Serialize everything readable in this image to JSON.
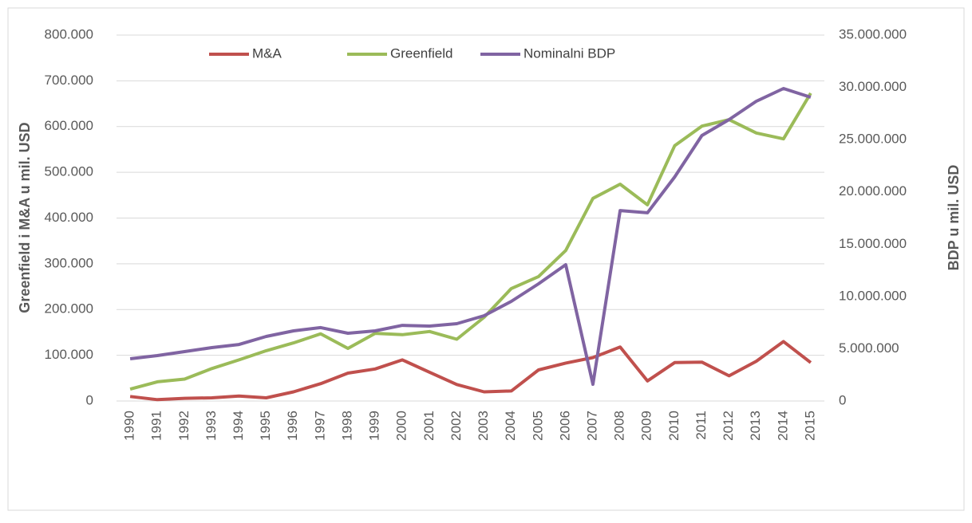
{
  "chart_data": {
    "type": "line",
    "y_label": "Greenfield i M&A u mil. USD",
    "y2_label": "BDP u mil. USD",
    "categories": [
      "1990",
      "1991",
      "1992",
      "1993",
      "1994",
      "1995",
      "1996",
      "1997",
      "1998",
      "1999",
      "2000",
      "2001",
      "2002",
      "2003",
      "2004",
      "2005",
      "2006",
      "2007",
      "2008",
      "2009",
      "2010",
      "2011",
      "2012",
      "2013",
      "2014",
      "2015"
    ],
    "series": [
      {
        "name": "M&A",
        "color": "#c0504d",
        "values": [
          10000,
          3000,
          6000,
          7000,
          11000,
          7000,
          20000,
          38000,
          61000,
          70000,
          90000,
          63000,
          36000,
          20000,
          22000,
          68000,
          83000,
          95000,
          118000,
          44000,
          84000,
          85000,
          55000,
          87000,
          130000,
          84000
        ]
      },
      {
        "name": "Greenfield",
        "color": "#9bbb59",
        "values": [
          26000,
          42000,
          48000,
          71000,
          90000,
          110000,
          127000,
          147000,
          115000,
          148000,
          145000,
          152000,
          135000,
          183000,
          246000,
          272000,
          329000,
          443000,
          474000,
          429000,
          558000,
          601000,
          615000,
          586000,
          573000,
          673000
        ]
      },
      {
        "name": "Nominalni BDP",
        "color": "#8064a2",
        "axis": "y2",
        "values": [
          4040000,
          4350000,
          4730000,
          5110000,
          5410000,
          6180000,
          6710000,
          7020000,
          6480000,
          6710000,
          7240000,
          7170000,
          7400000,
          8160000,
          9530000,
          11210000,
          13040000,
          1600000,
          18220000,
          18000000,
          21430000,
          25390000,
          26920000,
          28670000,
          29890000,
          29050000
        ]
      }
    ],
    "ylim": [
      0,
      800000
    ],
    "yticks": [
      0,
      {
        "value": 100000,
        "label": "100.000"
      },
      {
        "value": 200000,
        "label": "200.000"
      },
      {
        "value": 300000,
        "label": "300.000"
      },
      {
        "value": 400000,
        "label": "400.000"
      },
      {
        "value": 500000,
        "label": "500.000"
      },
      {
        "value": 600000,
        "label": "600.000"
      },
      {
        "value": 700000,
        "label": "700.000"
      },
      {
        "value": 800000,
        "label": "800.000"
      }
    ],
    "y2lim": [
      0,
      35000000
    ],
    "y2ticks": [
      0,
      {
        "value": 5000000,
        "label": "5.000.000"
      },
      {
        "value": 10000000,
        "label": "10.000.000"
      },
      {
        "value": 15000000,
        "label": "15.000.000"
      },
      {
        "value": 20000000,
        "label": "20.000.000"
      },
      {
        "value": 25000000,
        "label": "25.000.000"
      },
      {
        "value": 30000000,
        "label": "30.000.000"
      },
      {
        "value": 35000000,
        "label": "35.000.000"
      }
    ],
    "grid": true,
    "legend": "top"
  }
}
